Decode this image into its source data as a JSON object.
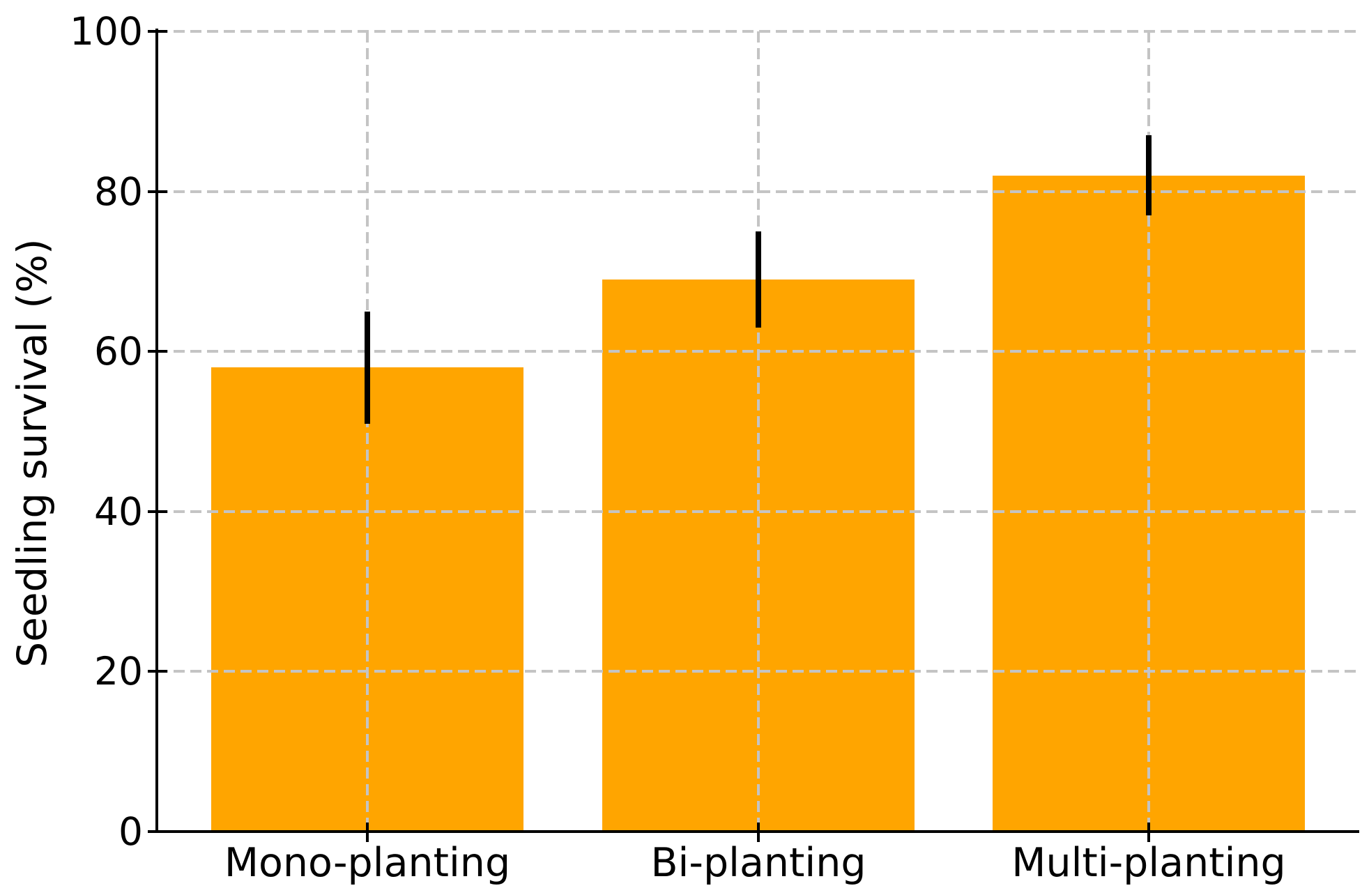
{
  "figure": {
    "background_color": "#ffffff",
    "axis_color": "#000000",
    "grid_color": "#c4c4c4",
    "text_color": "#000000"
  },
  "chart_data": {
    "type": "bar",
    "title": "",
    "xlabel": "",
    "ylabel": "Seedling survival (%)",
    "categories": [
      "Mono-planting",
      "Bi-planting",
      "Multi-planting"
    ],
    "values": [
      58,
      69,
      82
    ],
    "error_bars": [
      7,
      6,
      5
    ],
    "ylim": [
      0,
      100
    ],
    "yticks": [
      0,
      20,
      40,
      60,
      80,
      100
    ],
    "bar_color": "#FFA500",
    "error_bar_color": "#000000",
    "grid": "dashed, both axes, drawn above bars",
    "legend": null
  }
}
